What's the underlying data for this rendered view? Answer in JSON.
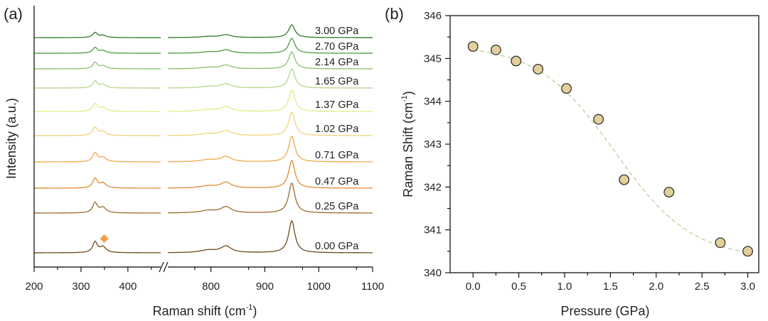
{
  "chart_data": [
    {
      "type": "line",
      "panel_label": "(a)",
      "xlabel_main": "Raman shift (cm",
      "xlabel_sup": "-1",
      "xlabel_end": ")",
      "ylabel": "Intensity (a.u.)",
      "x_ticks_left": [
        "200",
        "300",
        "400"
      ],
      "x_ticks_right": [
        "800",
        "900",
        "1000",
        "1100"
      ],
      "x_ranges": [
        [
          200,
          470
        ],
        [
          720,
          1100
        ]
      ],
      "peak_marker_x": 345,
      "peak_marker_color": "#f0a040",
      "series": [
        {
          "name": "0.00 GPa",
          "color": "#6b4a1a"
        },
        {
          "name": "0.25 GPa",
          "color": "#9a6a2a"
        },
        {
          "name": "0.47 GPa",
          "color": "#e08a30"
        },
        {
          "name": "0.71 GPa",
          "color": "#f0a848"
        },
        {
          "name": "1.02 GPa",
          "color": "#f4d27a"
        },
        {
          "name": "1.37 GPa",
          "color": "#e6ea88"
        },
        {
          "name": "1.65 GPa",
          "color": "#b6d488"
        },
        {
          "name": "2.14 GPa",
          "color": "#86c06a"
        },
        {
          "name": "2.70 GPa",
          "color": "#4f9a40"
        },
        {
          "name": "3.00 GPa",
          "color": "#2f7a2a"
        }
      ]
    },
    {
      "type": "scatter",
      "panel_label": "(b)",
      "xlabel": "Pressure (GPa)",
      "ylabel_main": "Raman Shift (cm",
      "ylabel_sup": "-1",
      "ylabel_end": ")",
      "xlim": [
        -0.25,
        3.12
      ],
      "ylim": [
        340,
        346
      ],
      "x_ticks": [
        "0.0",
        "0.5",
        "1.0",
        "1.5",
        "2.0",
        "2.5",
        "3.0"
      ],
      "y_ticks": [
        "340",
        "341",
        "342",
        "343",
        "344",
        "345",
        "346"
      ],
      "points": [
        {
          "x": 0.0,
          "y": 345.28
        },
        {
          "x": 0.25,
          "y": 345.2
        },
        {
          "x": 0.47,
          "y": 344.94
        },
        {
          "x": 0.71,
          "y": 344.75
        },
        {
          "x": 1.02,
          "y": 344.3
        },
        {
          "x": 1.37,
          "y": 343.58
        },
        {
          "x": 1.65,
          "y": 342.17
        },
        {
          "x": 2.14,
          "y": 341.88
        },
        {
          "x": 2.7,
          "y": 340.7
        },
        {
          "x": 3.0,
          "y": 340.5
        }
      ],
      "fit_curve": {
        "model": "sigmoid",
        "top": 345.32,
        "bottom": 340.32,
        "center": 1.55,
        "width": 0.42,
        "x_range": [
          0.0,
          3.0
        ],
        "color": "#c8d8a8"
      },
      "marker_fill": "#e2cf9c",
      "marker_stroke": "#333333"
    }
  ]
}
